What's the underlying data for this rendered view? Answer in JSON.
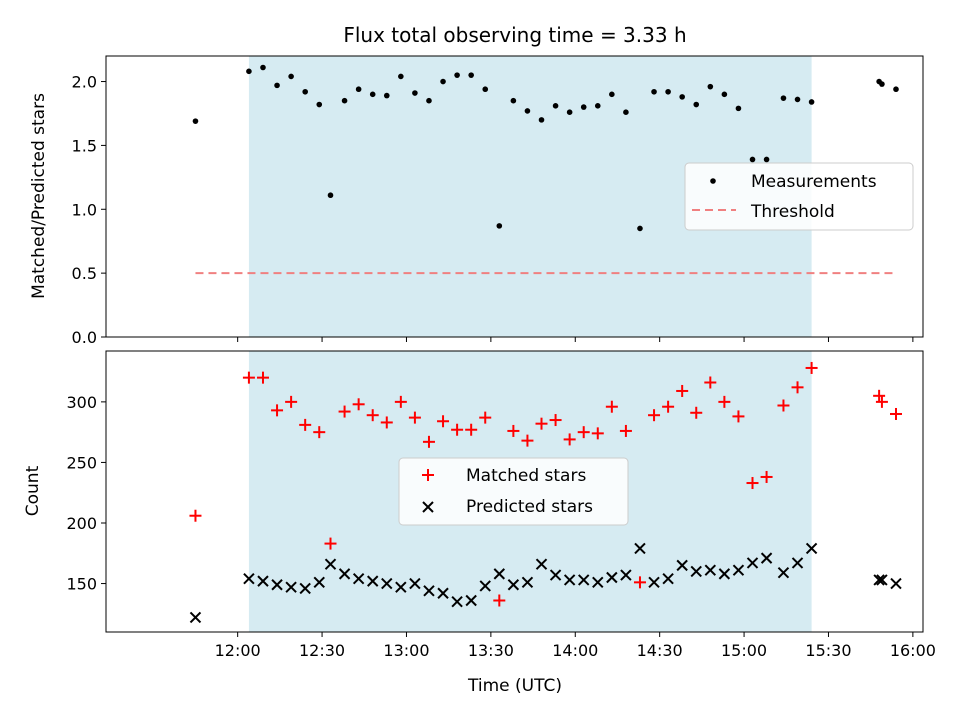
{
  "chart_data": [
    {
      "type": "scatter",
      "title": "Flux total observing time = 3.33 h",
      "xlabel": "",
      "ylabel": "Matched/Predicted stars",
      "ylim": [
        0,
        2.2
      ],
      "yticks": [
        0.0,
        0.5,
        1.0,
        1.5,
        2.0
      ],
      "ytick_labels": [
        "0.0",
        "0.5",
        "1.0",
        "1.5",
        "2.0"
      ],
      "shaded_span": {
        "start": "12:04",
        "end": "15:24",
        "color": "#add8e6"
      },
      "legend_position": "center-right",
      "series": [
        {
          "name": "Measurements",
          "style": "dot",
          "color": "#000000",
          "x": [
            "11:45",
            "12:04",
            "12:09",
            "12:14",
            "12:19",
            "12:24",
            "12:29",
            "12:33",
            "12:38",
            "12:43",
            "12:48",
            "12:53",
            "12:58",
            "13:03",
            "13:08",
            "13:13",
            "13:18",
            "13:23",
            "13:28",
            "13:33",
            "13:38",
            "13:43",
            "13:48",
            "13:53",
            "13:58",
            "14:03",
            "14:08",
            "14:13",
            "14:18",
            "14:23",
            "14:28",
            "14:33",
            "14:38",
            "14:43",
            "14:48",
            "14:53",
            "14:58",
            "15:03",
            "15:08",
            "15:14",
            "15:19",
            "15:24",
            "15:48",
            "15:49",
            "15:54"
          ],
          "y": [
            1.69,
            2.08,
            2.11,
            1.97,
            2.04,
            1.92,
            1.82,
            1.11,
            1.85,
            1.94,
            1.9,
            1.89,
            2.04,
            1.91,
            1.85,
            2.0,
            2.05,
            2.05,
            1.94,
            0.87,
            1.85,
            1.77,
            1.7,
            1.81,
            1.76,
            1.8,
            1.81,
            1.9,
            1.76,
            0.85,
            1.92,
            1.92,
            1.88,
            1.82,
            1.96,
            1.9,
            1.79,
            1.39,
            1.39,
            1.87,
            1.86,
            1.84,
            2.0,
            1.98,
            1.94
          ]
        },
        {
          "name": "Threshold",
          "style": "dashed-line",
          "color": "#f08080",
          "x": [
            "11:45",
            "15:54"
          ],
          "y": [
            0.5,
            0.5
          ]
        }
      ]
    },
    {
      "type": "scatter",
      "title": "",
      "xlabel": "Time (UTC)",
      "ylabel": "Count",
      "ylim": [
        110,
        342
      ],
      "yticks": [
        150,
        200,
        250,
        300
      ],
      "ytick_labels": [
        "150",
        "200",
        "250",
        "300"
      ],
      "xticks": [
        "12:00",
        "12:30",
        "13:00",
        "13:30",
        "14:00",
        "14:30",
        "15:00",
        "15:30",
        "16:00"
      ],
      "shaded_span": {
        "start": "12:04",
        "end": "15:24",
        "color": "#add8e6"
      },
      "legend_position": "center",
      "series": [
        {
          "name": "Matched stars",
          "style": "plus",
          "color": "#ff0000",
          "x": [
            "11:45",
            "12:04",
            "12:09",
            "12:14",
            "12:19",
            "12:24",
            "12:29",
            "12:33",
            "12:38",
            "12:43",
            "12:48",
            "12:53",
            "12:58",
            "13:03",
            "13:08",
            "13:13",
            "13:18",
            "13:23",
            "13:28",
            "13:33",
            "13:38",
            "13:43",
            "13:48",
            "13:53",
            "13:58",
            "14:03",
            "14:08",
            "14:13",
            "14:18",
            "14:23",
            "14:28",
            "14:33",
            "14:38",
            "14:43",
            "14:48",
            "14:53",
            "14:58",
            "15:03",
            "15:08",
            "15:14",
            "15:19",
            "15:24",
            "15:48",
            "15:49",
            "15:54"
          ],
          "y": [
            206,
            320,
            320,
            293,
            300,
            281,
            275,
            183,
            292,
            298,
            289,
            283,
            300,
            287,
            267,
            284,
            277,
            277,
            287,
            136,
            276,
            268,
            282,
            285,
            269,
            275,
            274,
            296,
            276,
            151,
            289,
            296,
            309,
            291,
            316,
            300,
            288,
            233,
            238,
            297,
            312,
            328,
            305,
            300,
            290
          ]
        },
        {
          "name": "Predicted stars",
          "style": "cross",
          "color": "#000000",
          "x": [
            "11:45",
            "12:04",
            "12:09",
            "12:14",
            "12:19",
            "12:24",
            "12:29",
            "12:33",
            "12:38",
            "12:43",
            "12:48",
            "12:53",
            "12:58",
            "13:03",
            "13:08",
            "13:13",
            "13:18",
            "13:23",
            "13:28",
            "13:33",
            "13:38",
            "13:43",
            "13:48",
            "13:53",
            "13:58",
            "14:03",
            "14:08",
            "14:13",
            "14:18",
            "14:23",
            "14:28",
            "14:33",
            "14:38",
            "14:43",
            "14:48",
            "14:53",
            "14:58",
            "15:03",
            "15:08",
            "15:14",
            "15:19",
            "15:24",
            "15:48",
            "15:49",
            "15:54"
          ],
          "y": [
            122,
            154,
            152,
            149,
            147,
            146,
            151,
            166,
            158,
            154,
            152,
            150,
            147,
            150,
            144,
            142,
            135,
            136,
            148,
            158,
            149,
            151,
            166,
            157,
            153,
            153,
            151,
            155,
            157,
            179,
            151,
            154,
            165,
            160,
            161,
            158,
            161,
            167,
            171,
            159,
            167,
            179,
            153,
            153,
            150
          ]
        }
      ]
    }
  ]
}
